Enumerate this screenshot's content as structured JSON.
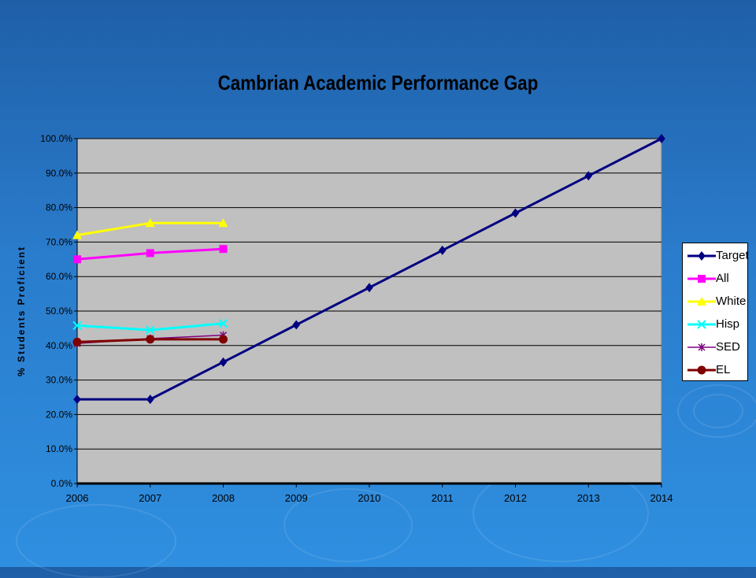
{
  "chart_data": {
    "type": "line",
    "title": "Cambrian Academic Performance Gap",
    "xlabel": "",
    "ylabel": "% Students Proficient",
    "x": [
      "2006",
      "2007",
      "2008",
      "2009",
      "2010",
      "2011",
      "2012",
      "2013",
      "2014"
    ],
    "ylim": [
      0,
      100
    ],
    "yticks": [
      "0.0%",
      "10.0%",
      "20.0%",
      "30.0%",
      "40.0%",
      "50.0%",
      "60.0%",
      "70.0%",
      "80.0%",
      "90.0%",
      "100.0%"
    ],
    "grid": true,
    "legend": "right",
    "series": [
      {
        "name": "Target",
        "color": "#000080",
        "marker": "diamond",
        "values": [
          24.4,
          24.4,
          35.2,
          46.0,
          56.8,
          67.6,
          78.4,
          89.2,
          100.0
        ]
      },
      {
        "name": "All",
        "color": "#ff00ff",
        "marker": "square",
        "values": [
          65.0,
          66.8,
          68.0,
          null,
          null,
          null,
          null,
          null,
          null
        ]
      },
      {
        "name": "White",
        "color": "#ffff00",
        "marker": "triangle",
        "values": [
          72.0,
          75.5,
          75.5,
          null,
          null,
          null,
          null,
          null,
          null
        ]
      },
      {
        "name": "Hisp",
        "color": "#00ffff",
        "marker": "x",
        "values": [
          45.8,
          44.5,
          46.4,
          null,
          null,
          null,
          null,
          null,
          null
        ]
      },
      {
        "name": "SED",
        "color": "#800080",
        "marker": "star",
        "values": [
          40.6,
          42.0,
          43.0,
          null,
          null,
          null,
          null,
          null,
          null
        ]
      },
      {
        "name": "EL",
        "color": "#800000",
        "marker": "circle",
        "values": [
          41.0,
          41.8,
          41.8,
          null,
          null,
          null,
          null,
          null,
          null
        ]
      }
    ]
  }
}
